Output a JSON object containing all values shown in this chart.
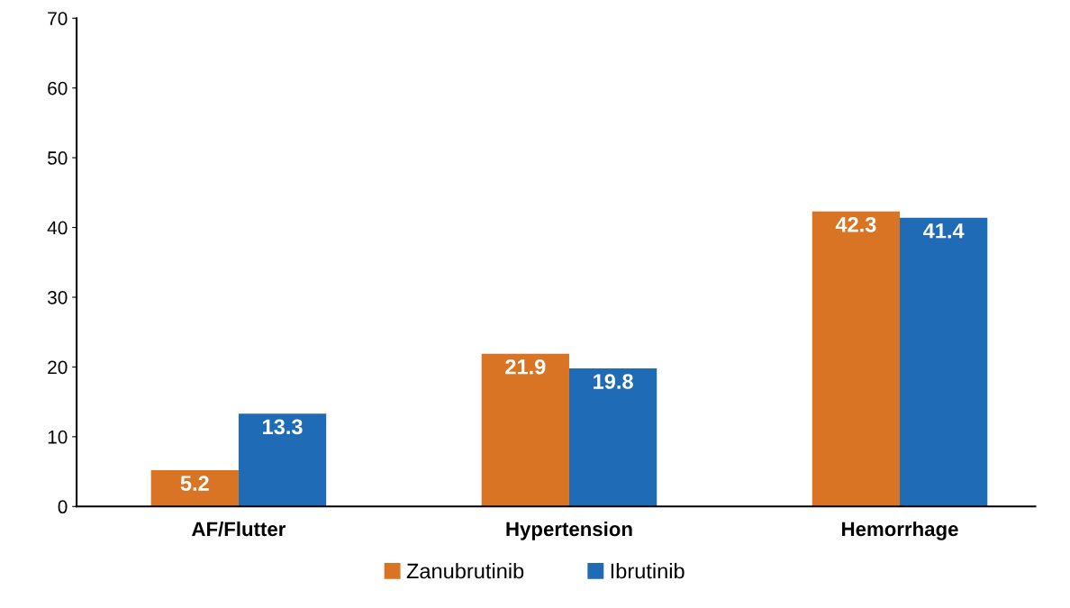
{
  "chart_data": {
    "type": "bar",
    "categories": [
      "AF/Flutter",
      "Hypertension",
      "Hemorrhage"
    ],
    "series": [
      {
        "name": "Zanubrutinib",
        "color": "#d97425",
        "values": [
          5.2,
          21.9,
          42.3
        ]
      },
      {
        "name": "Ibrutinib",
        "color": "#1f6bb5",
        "values": [
          13.3,
          19.8,
          41.4
        ]
      }
    ],
    "ylim": [
      0,
      70
    ],
    "yticks": [
      0,
      10,
      20,
      30,
      40,
      50,
      60,
      70
    ],
    "data_labels": true,
    "grid": false,
    "legend": "bottom"
  }
}
